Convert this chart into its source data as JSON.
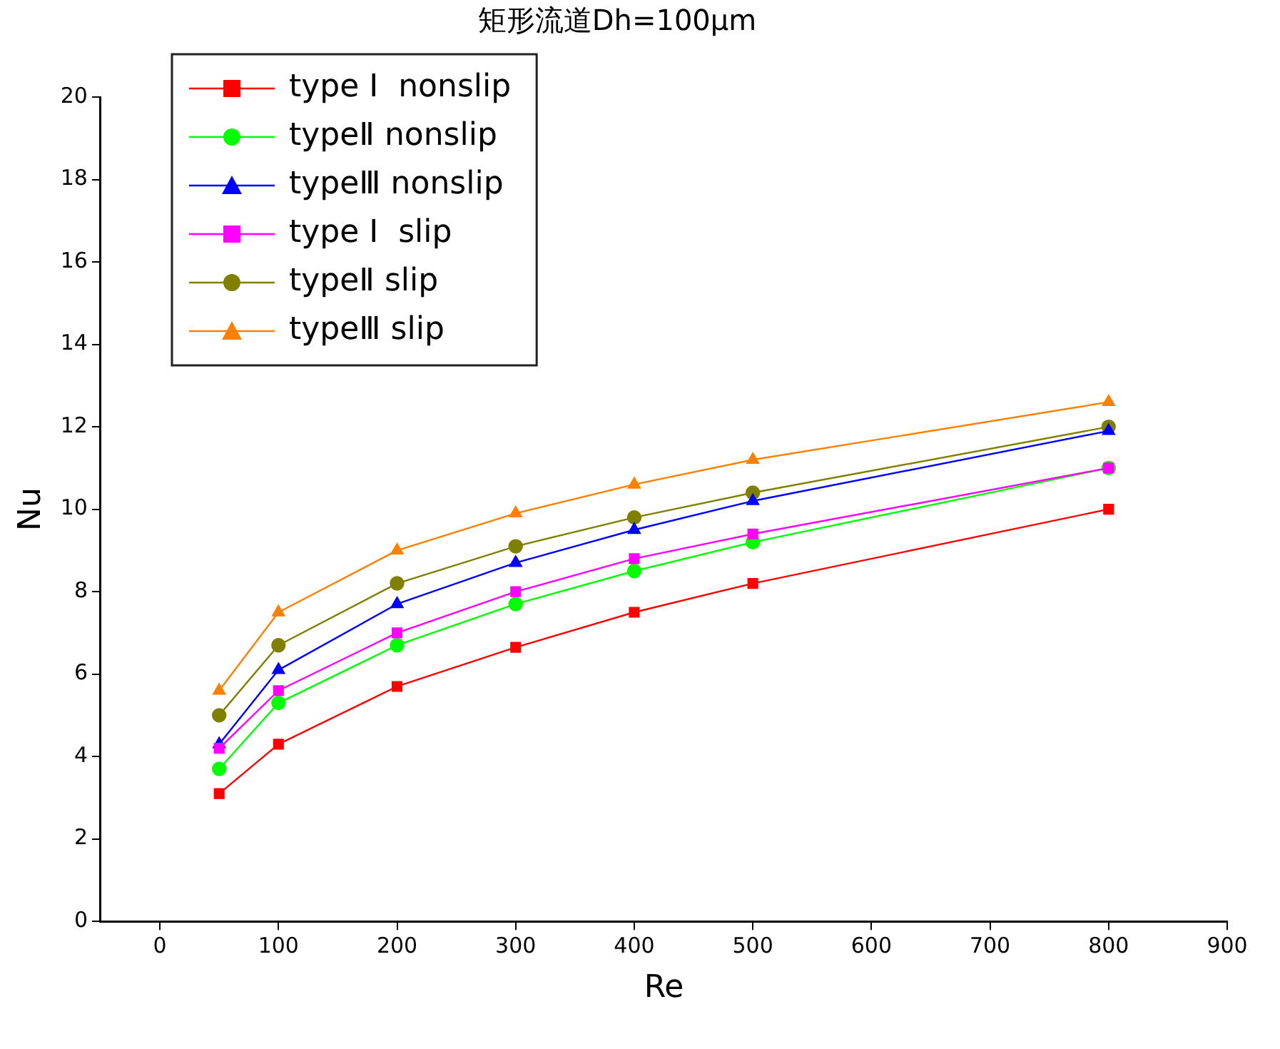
{
  "chart_data": {
    "type": "line",
    "title": "矩形流道Dh=100μm",
    "xlabel": "Re",
    "ylabel": "Nu",
    "x": [
      50,
      100,
      200,
      300,
      400,
      500,
      800
    ],
    "series": [
      {
        "name": "type Ⅰ  nonslip",
        "color": "#ff0000",
        "marker": "square",
        "values": [
          3.1,
          4.3,
          5.7,
          6.65,
          7.5,
          8.2,
          10.0
        ]
      },
      {
        "name": "typeⅡ nonslip",
        "color": "#00ff00",
        "marker": "circle",
        "values": [
          3.7,
          5.3,
          6.7,
          7.7,
          8.5,
          9.2,
          11.0
        ]
      },
      {
        "name": "typeⅢ nonslip",
        "color": "#0000ff",
        "marker": "triangle",
        "values": [
          4.3,
          6.1,
          7.7,
          8.7,
          9.5,
          10.2,
          11.9
        ]
      },
      {
        "name": "type Ⅰ  slip",
        "color": "#ff00ff",
        "marker": "square",
        "values": [
          4.2,
          5.6,
          7.0,
          8.0,
          8.8,
          9.4,
          11.0
        ]
      },
      {
        "name": "typeⅡ slip",
        "color": "#808000",
        "marker": "circle",
        "values": [
          5.0,
          6.7,
          8.2,
          9.1,
          9.8,
          10.4,
          12.0
        ]
      },
      {
        "name": "typeⅢ slip",
        "color": "#ff8000",
        "marker": "triangle",
        "values": [
          5.6,
          7.5,
          9.0,
          9.9,
          10.6,
          11.2,
          12.6
        ]
      }
    ],
    "xlim": [
      -50,
      900
    ],
    "xticks": [
      0,
      100,
      200,
      300,
      400,
      500,
      600,
      700,
      800,
      900
    ],
    "ylim": [
      0,
      20
    ],
    "yticks": [
      0,
      2,
      4,
      6,
      8,
      10,
      12,
      14,
      16,
      18,
      20
    ],
    "grid": false,
    "legend": "top left",
    "line_style": "solid"
  }
}
